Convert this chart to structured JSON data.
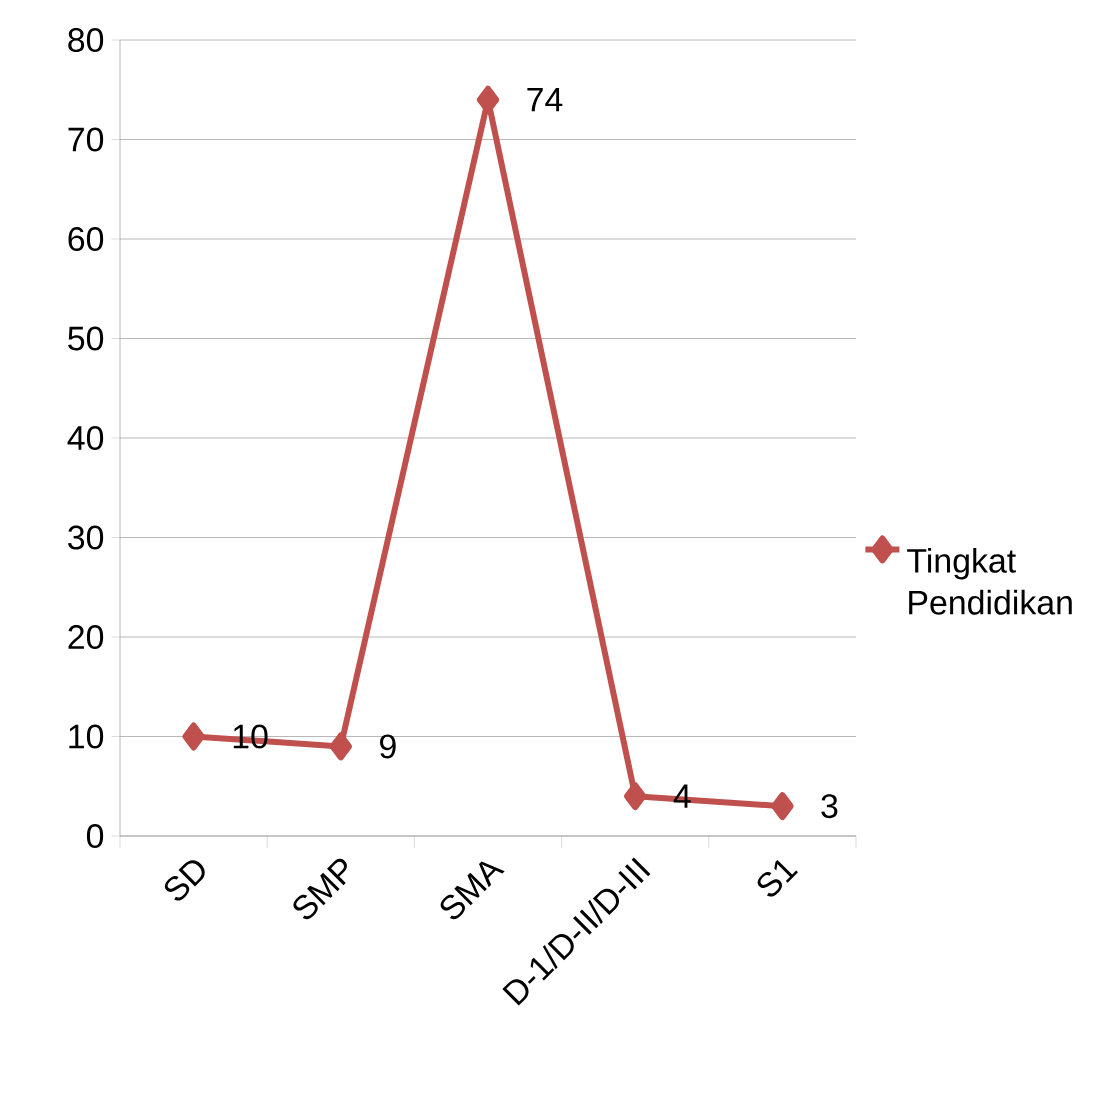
{
  "chart_data": {
    "type": "line",
    "categories": [
      "SD",
      "SMP",
      "SMA",
      "D-1/D-II/D-III",
      "S1"
    ],
    "series": [
      {
        "name": "Tingkat Pendidikan",
        "color": "#c0504d",
        "values": [
          10,
          9,
          74,
          4,
          3
        ]
      }
    ],
    "ylim": [
      0,
      80
    ],
    "yticks": [
      0,
      10,
      20,
      30,
      40,
      50,
      60,
      70,
      80
    ],
    "grid": "y",
    "legend": "right",
    "marker": "diamond",
    "line_style": "solid",
    "data_labels": true
  }
}
